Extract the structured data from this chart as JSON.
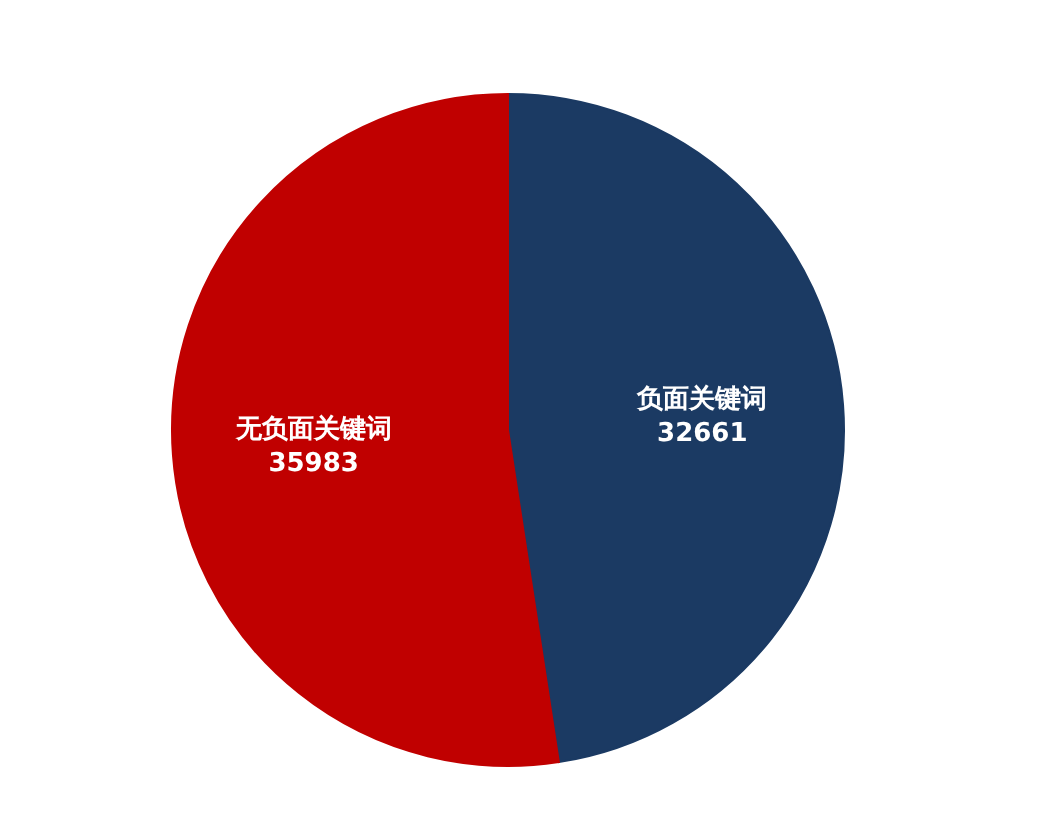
{
  "chart_data": {
    "type": "pie",
    "categories": [
      "负面关键词",
      "无负面关键词"
    ],
    "values": [
      32661,
      35983
    ],
    "colors": [
      "#1b3a63",
      "#c00000"
    ],
    "data_labels": true
  }
}
